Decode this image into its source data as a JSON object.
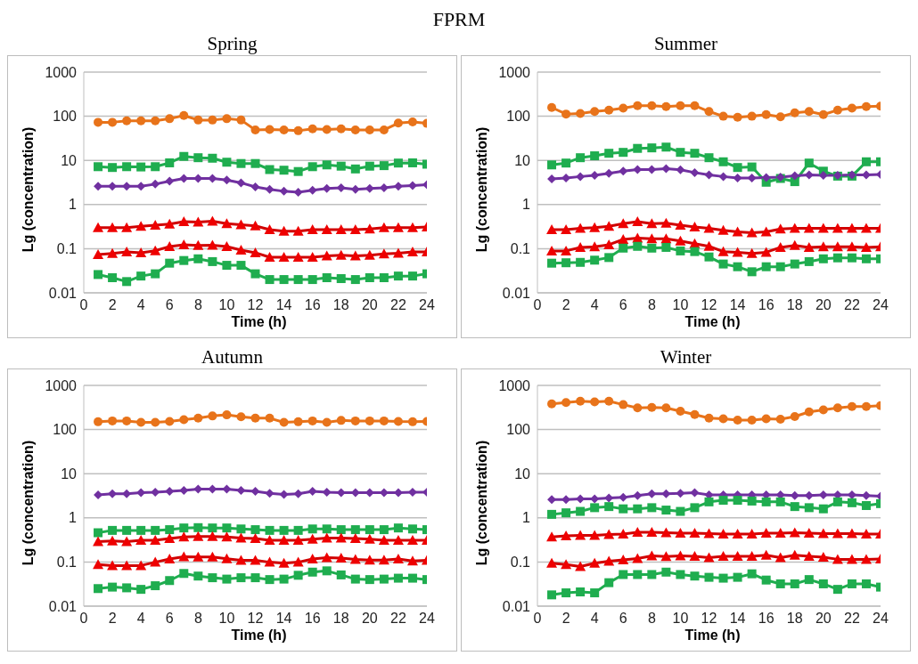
{
  "chart_data": [
    {
      "type": "line",
      "title": "Spring",
      "annotations": [
        "FPRM"
      ],
      "xlabel": "Time (h)",
      "ylabel": "Lg (concentration)",
      "log": "y",
      "grid": "y",
      "legend": false,
      "xlim": [
        0,
        24
      ],
      "xticks": [
        0,
        2,
        4,
        6,
        8,
        10,
        12,
        14,
        16,
        18,
        20,
        22,
        24
      ],
      "ylim": [
        0.01,
        1000
      ],
      "yticks": [
        0.01,
        0.1,
        1,
        10,
        100,
        1000
      ],
      "x": [
        1,
        2,
        3,
        4,
        5,
        6,
        7,
        8,
        9,
        10,
        11,
        12,
        13,
        14,
        15,
        16,
        17,
        18,
        19,
        20,
        21,
        22,
        23,
        24
      ],
      "series": [
        {
          "color": "#e8731a",
          "marker": "circle",
          "values": [
            73,
            73,
            79,
            79,
            79,
            88,
            104,
            82,
            82,
            88,
            82,
            49,
            50,
            49,
            47,
            52,
            50,
            52,
            49,
            49,
            49,
            70,
            74,
            69
          ]
        },
        {
          "color": "#1fad4f",
          "marker": "square",
          "values": [
            7.2,
            6.9,
            7.2,
            7.1,
            7.2,
            8.8,
            12.3,
            11.5,
            11.2,
            9.1,
            8.5,
            8.5,
            6.2,
            6.0,
            5.6,
            7.2,
            7.9,
            7.4,
            6.4,
            7.4,
            7.6,
            8.7,
            8.8,
            8.2
          ]
        },
        {
          "color": "#7030a0",
          "marker": "diamond",
          "values": [
            2.6,
            2.6,
            2.6,
            2.6,
            2.9,
            3.4,
            3.9,
            3.9,
            3.9,
            3.6,
            3.1,
            2.5,
            2.2,
            2.0,
            1.9,
            2.1,
            2.3,
            2.4,
            2.2,
            2.3,
            2.4,
            2.6,
            2.7,
            2.8
          ]
        },
        {
          "color": "#d00000",
          "marker": "triangle",
          "values": [
            0.3,
            0.3,
            0.3,
            0.32,
            0.34,
            0.36,
            0.41,
            0.4,
            0.42,
            0.37,
            0.35,
            0.33,
            0.27,
            0.25,
            0.25,
            0.27,
            0.27,
            0.27,
            0.27,
            0.28,
            0.3,
            0.3,
            0.3,
            0.31
          ]
        },
        {
          "color": "#d00000",
          "marker": "triangle",
          "values": [
            0.074,
            0.078,
            0.085,
            0.081,
            0.09,
            0.112,
            0.123,
            0.118,
            0.12,
            0.112,
            0.093,
            0.081,
            0.064,
            0.064,
            0.064,
            0.064,
            0.069,
            0.071,
            0.069,
            0.071,
            0.076,
            0.079,
            0.085,
            0.085
          ]
        },
        {
          "color": "#1fad4f",
          "marker": "square",
          "values": [
            0.026,
            0.022,
            0.018,
            0.024,
            0.027,
            0.047,
            0.054,
            0.059,
            0.051,
            0.042,
            0.042,
            0.027,
            0.02,
            0.02,
            0.02,
            0.02,
            0.022,
            0.021,
            0.02,
            0.022,
            0.022,
            0.024,
            0.024,
            0.027
          ]
        }
      ]
    },
    {
      "type": "line",
      "title": "Summer",
      "xlabel": "Time (h)",
      "ylabel": "Lg (concentration)",
      "log": "y",
      "grid": "y",
      "legend": false,
      "xlim": [
        0,
        24
      ],
      "xticks": [
        0,
        2,
        4,
        6,
        8,
        10,
        12,
        14,
        16,
        18,
        20,
        22,
        24
      ],
      "ylim": [
        0.01,
        1000
      ],
      "yticks": [
        0.01,
        0.1,
        1,
        10,
        100,
        1000
      ],
      "x": [
        1,
        2,
        3,
        4,
        5,
        6,
        7,
        8,
        9,
        10,
        11,
        12,
        13,
        14,
        15,
        16,
        17,
        18,
        19,
        20,
        21,
        22,
        23,
        24
      ],
      "series": [
        {
          "color": "#e8731a",
          "marker": "circle",
          "values": [
            158,
            112,
            115,
            128,
            138,
            152,
            174,
            174,
            165,
            174,
            174,
            128,
            100,
            95,
            100,
            109,
            97,
            120,
            128,
            109,
            138,
            152,
            165,
            169
          ]
        },
        {
          "color": "#1fad4f",
          "marker": "square",
          "values": [
            7.9,
            8.7,
            11.5,
            12.7,
            14.5,
            15.2,
            18.7,
            19.2,
            20,
            15.2,
            14.5,
            11.5,
            9.3,
            6.9,
            7.1,
            3.2,
            3.9,
            3.3,
            8.7,
            5.7,
            4.4,
            4.4,
            9.3,
            9.3
          ]
        },
        {
          "color": "#7030a0",
          "marker": "diamond",
          "values": [
            3.8,
            4.0,
            4.3,
            4.6,
            5.1,
            5.7,
            6.2,
            6.2,
            6.5,
            6.1,
            5.3,
            4.7,
            4.3,
            4.0,
            4.0,
            4.1,
            4.2,
            4.5,
            4.7,
            4.6,
            4.6,
            4.7,
            4.7,
            4.8
          ]
        },
        {
          "color": "#d00000",
          "marker": "triangle",
          "values": [
            0.27,
            0.27,
            0.29,
            0.3,
            0.32,
            0.37,
            0.41,
            0.37,
            0.38,
            0.34,
            0.31,
            0.29,
            0.26,
            0.24,
            0.23,
            0.24,
            0.28,
            0.29,
            0.29,
            0.29,
            0.29,
            0.29,
            0.29,
            0.29
          ]
        },
        {
          "color": "#d00000",
          "marker": "triangle",
          "values": [
            0.089,
            0.089,
            0.107,
            0.11,
            0.123,
            0.162,
            0.174,
            0.167,
            0.167,
            0.149,
            0.13,
            0.113,
            0.086,
            0.083,
            0.078,
            0.083,
            0.107,
            0.118,
            0.107,
            0.11,
            0.11,
            0.11,
            0.107,
            0.11
          ]
        },
        {
          "color": "#1fad4f",
          "marker": "square",
          "values": [
            0.047,
            0.048,
            0.049,
            0.055,
            0.063,
            0.103,
            0.113,
            0.103,
            0.107,
            0.089,
            0.086,
            0.065,
            0.045,
            0.039,
            0.03,
            0.039,
            0.039,
            0.045,
            0.051,
            0.059,
            0.062,
            0.062,
            0.059,
            0.059
          ]
        }
      ]
    },
    {
      "type": "line",
      "title": "Autumn",
      "xlabel": "Time (h)",
      "ylabel": "Lg (concentration)",
      "log": "y",
      "grid": "y",
      "legend": false,
      "xlim": [
        0,
        24
      ],
      "xticks": [
        0,
        2,
        4,
        6,
        8,
        10,
        12,
        14,
        16,
        18,
        20,
        22,
        24
      ],
      "ylim": [
        0.01,
        1000
      ],
      "yticks": [
        0.01,
        0.1,
        1,
        10,
        100,
        1000
      ],
      "x": [
        1,
        2,
        3,
        4,
        5,
        6,
        7,
        8,
        9,
        10,
        11,
        12,
        13,
        14,
        15,
        16,
        17,
        18,
        19,
        20,
        21,
        22,
        23,
        24
      ],
      "series": [
        {
          "color": "#e8731a",
          "marker": "circle",
          "values": [
            150,
            157,
            157,
            146,
            146,
            152,
            168,
            181,
            203,
            215,
            195,
            181,
            181,
            146,
            150,
            157,
            146,
            161,
            157,
            157,
            157,
            152,
            150,
            152
          ]
        },
        {
          "color": "#7030a0",
          "marker": "diamond",
          "values": [
            3.3,
            3.5,
            3.5,
            3.7,
            3.8,
            4.0,
            4.2,
            4.5,
            4.5,
            4.5,
            4.2,
            4.0,
            3.6,
            3.4,
            3.5,
            4.0,
            3.8,
            3.7,
            3.7,
            3.7,
            3.7,
            3.7,
            3.8,
            3.8
          ]
        },
        {
          "color": "#1fad4f",
          "marker": "square",
          "values": [
            0.46,
            0.52,
            0.52,
            0.52,
            0.52,
            0.54,
            0.59,
            0.6,
            0.59,
            0.59,
            0.56,
            0.54,
            0.52,
            0.52,
            0.52,
            0.56,
            0.56,
            0.54,
            0.54,
            0.54,
            0.54,
            0.59,
            0.56,
            0.54
          ]
        },
        {
          "color": "#d00000",
          "marker": "triangle",
          "values": [
            0.29,
            0.3,
            0.29,
            0.31,
            0.31,
            0.34,
            0.37,
            0.38,
            0.38,
            0.37,
            0.35,
            0.34,
            0.31,
            0.31,
            0.31,
            0.33,
            0.35,
            0.35,
            0.34,
            0.33,
            0.31,
            0.31,
            0.31,
            0.31
          ]
        },
        {
          "color": "#d00000",
          "marker": "triangle",
          "values": [
            0.088,
            0.083,
            0.083,
            0.083,
            0.099,
            0.117,
            0.132,
            0.13,
            0.13,
            0.119,
            0.109,
            0.109,
            0.099,
            0.094,
            0.099,
            0.117,
            0.126,
            0.122,
            0.114,
            0.11,
            0.11,
            0.117,
            0.106,
            0.109
          ]
        },
        {
          "color": "#1fad4f",
          "marker": "square",
          "values": [
            0.025,
            0.027,
            0.026,
            0.024,
            0.029,
            0.038,
            0.055,
            0.048,
            0.044,
            0.041,
            0.044,
            0.044,
            0.04,
            0.041,
            0.05,
            0.059,
            0.063,
            0.051,
            0.041,
            0.04,
            0.041,
            0.043,
            0.043,
            0.04
          ]
        }
      ]
    },
    {
      "type": "line",
      "title": "Winter",
      "xlabel": "Time (h)",
      "ylabel": "Lg (concentration)",
      "log": "y",
      "grid": "y",
      "legend": false,
      "xlim": [
        0,
        24
      ],
      "xticks": [
        0,
        2,
        4,
        6,
        8,
        10,
        12,
        14,
        16,
        18,
        20,
        22,
        24
      ],
      "ylim": [
        0.01,
        1000
      ],
      "yticks": [
        0.01,
        0.1,
        1,
        10,
        100,
        1000
      ],
      "x": [
        1,
        2,
        3,
        4,
        5,
        6,
        7,
        8,
        9,
        10,
        11,
        12,
        13,
        14,
        15,
        16,
        17,
        18,
        19,
        20,
        21,
        22,
        23,
        24
      ],
      "series": [
        {
          "color": "#e8731a",
          "marker": "circle",
          "values": [
            383,
            410,
            440,
            423,
            440,
            367,
            310,
            318,
            310,
            261,
            218,
            181,
            176,
            164,
            164,
            176,
            171,
            197,
            251,
            280,
            310,
            332,
            332,
            347
          ]
        },
        {
          "color": "#7030a0",
          "marker": "diamond",
          "values": [
            2.6,
            2.6,
            2.7,
            2.7,
            2.8,
            2.9,
            3.2,
            3.5,
            3.5,
            3.6,
            3.7,
            3.3,
            3.3,
            3.3,
            3.3,
            3.3,
            3.3,
            3.2,
            3.2,
            3.3,
            3.3,
            3.3,
            3.2,
            3.1
          ]
        },
        {
          "color": "#1fad4f",
          "marker": "square",
          "values": [
            1.2,
            1.3,
            1.4,
            1.7,
            1.8,
            1.6,
            1.6,
            1.7,
            1.5,
            1.4,
            1.7,
            2.3,
            2.5,
            2.5,
            2.4,
            2.3,
            2.3,
            1.8,
            1.7,
            1.6,
            2.3,
            2.2,
            1.9,
            2.1
          ]
        },
        {
          "color": "#d00000",
          "marker": "triangle",
          "values": [
            0.37,
            0.39,
            0.4,
            0.4,
            0.42,
            0.43,
            0.47,
            0.47,
            0.46,
            0.45,
            0.45,
            0.44,
            0.43,
            0.43,
            0.43,
            0.45,
            0.45,
            0.46,
            0.45,
            0.44,
            0.44,
            0.44,
            0.43,
            0.43
          ]
        },
        {
          "color": "#d00000",
          "marker": "triangle",
          "values": [
            0.094,
            0.088,
            0.079,
            0.094,
            0.104,
            0.112,
            0.12,
            0.138,
            0.133,
            0.138,
            0.135,
            0.125,
            0.135,
            0.135,
            0.135,
            0.142,
            0.125,
            0.142,
            0.135,
            0.129,
            0.115,
            0.115,
            0.115,
            0.117
          ]
        },
        {
          "color": "#1fad4f",
          "marker": "square",
          "values": [
            0.018,
            0.02,
            0.021,
            0.02,
            0.034,
            0.052,
            0.052,
            0.052,
            0.059,
            0.052,
            0.048,
            0.045,
            0.043,
            0.045,
            0.054,
            0.039,
            0.032,
            0.032,
            0.04,
            0.032,
            0.024,
            0.032,
            0.032,
            0.027
          ]
        }
      ]
    }
  ]
}
